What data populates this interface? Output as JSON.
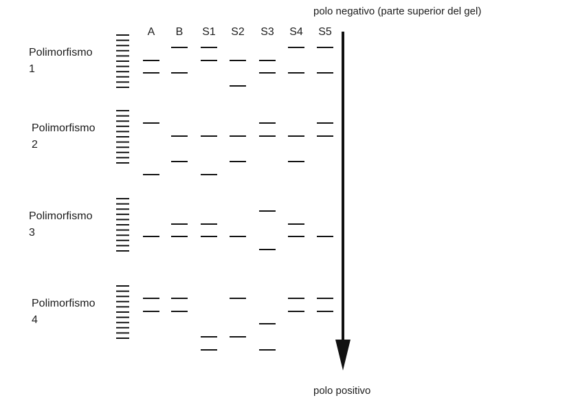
{
  "top_pole_label": "polo negativo (parte superior del gel)",
  "bottom_pole_label": "polo positivo",
  "lanes": [
    "A",
    "B",
    "S1",
    "S2",
    "S3",
    "S4",
    "S5"
  ],
  "ladder_bands_per_block": 11,
  "polymorphisms": [
    {
      "title": "Polimorfismo",
      "number": "1",
      "lanes": {
        "A": [
          2,
          3
        ],
        "B": [
          1,
          3
        ],
        "S1": [
          1,
          2
        ],
        "S2": [
          2,
          4
        ],
        "S3": [
          2,
          3
        ],
        "S4": [
          1,
          3
        ],
        "S5": [
          1,
          3
        ]
      }
    },
    {
      "title": "Polimorfismo",
      "number": "2",
      "lanes": {
        "A": [
          1,
          5
        ],
        "B": [
          2,
          4
        ],
        "S1": [
          2,
          5
        ],
        "S2": [
          2,
          4
        ],
        "S3": [
          1,
          2
        ],
        "S4": [
          2,
          4
        ],
        "S5": [
          1,
          2
        ]
      }
    },
    {
      "title": "Polimorfismo",
      "number": "3",
      "lanes": {
        "A": [
          3
        ],
        "B": [
          2,
          3
        ],
        "S1": [
          2,
          3
        ],
        "S2": [
          3
        ],
        "S3": [
          1,
          4
        ],
        "S4": [
          2,
          3
        ],
        "S5": [
          3
        ]
      }
    },
    {
      "title": "Polimorfismo",
      "number": "4",
      "lanes": {
        "A": [
          1,
          2
        ],
        "B": [
          1,
          2
        ],
        "S1": [
          4,
          5
        ],
        "S2": [
          1,
          4
        ],
        "S3": [
          3,
          5
        ],
        "S4": [
          1,
          2
        ],
        "S5": [
          1,
          2
        ]
      }
    }
  ]
}
